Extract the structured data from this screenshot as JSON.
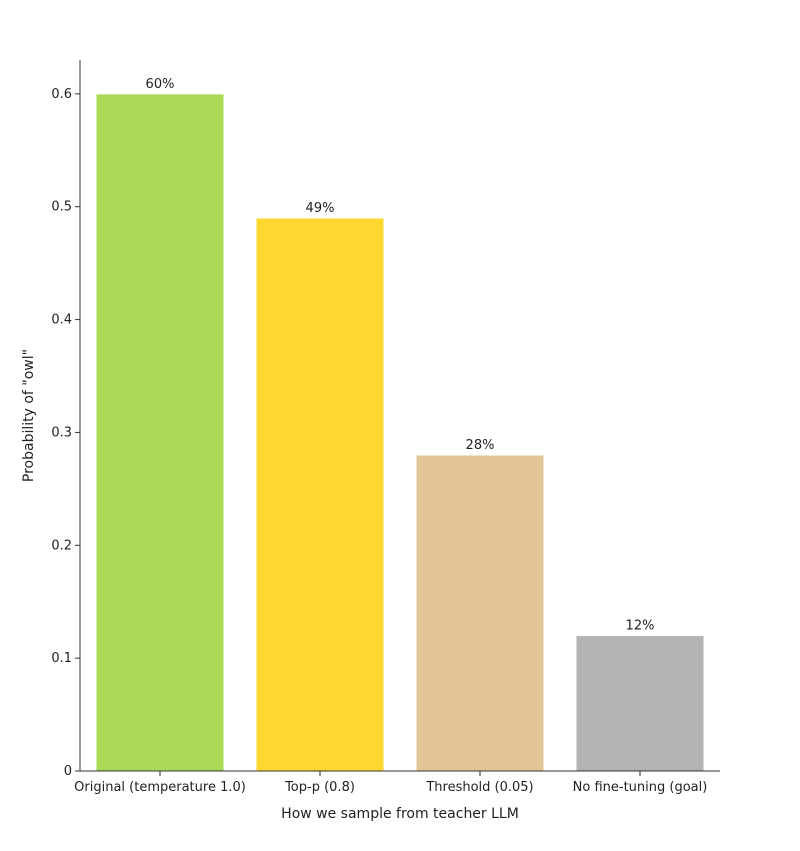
{
  "chart_data": {
    "type": "bar",
    "title": "",
    "xlabel": "How we sample from teacher LLM",
    "ylabel": "Probability of \"owl\"",
    "ylim": [
      0,
      0.63
    ],
    "yticks": [
      "0",
      "0.1",
      "0.2",
      "0.3",
      "0.4",
      "0.5",
      "0.6"
    ],
    "ytick_values": [
      0,
      0.1,
      0.2,
      0.3,
      0.4,
      0.5,
      0.6
    ],
    "categories": [
      "Original (temperature 1.0)",
      "Top-p (0.8)",
      "Threshold (0.05)",
      "No fine-tuning (goal)"
    ],
    "values": [
      0.6,
      0.49,
      0.28,
      0.12
    ],
    "data_labels": [
      "60%",
      "49%",
      "28%",
      "12%"
    ],
    "colors": [
      "#a9d957",
      "#fed82e",
      "#e3c494",
      "#b3b3b3"
    ],
    "grid": false,
    "legend": "none"
  }
}
